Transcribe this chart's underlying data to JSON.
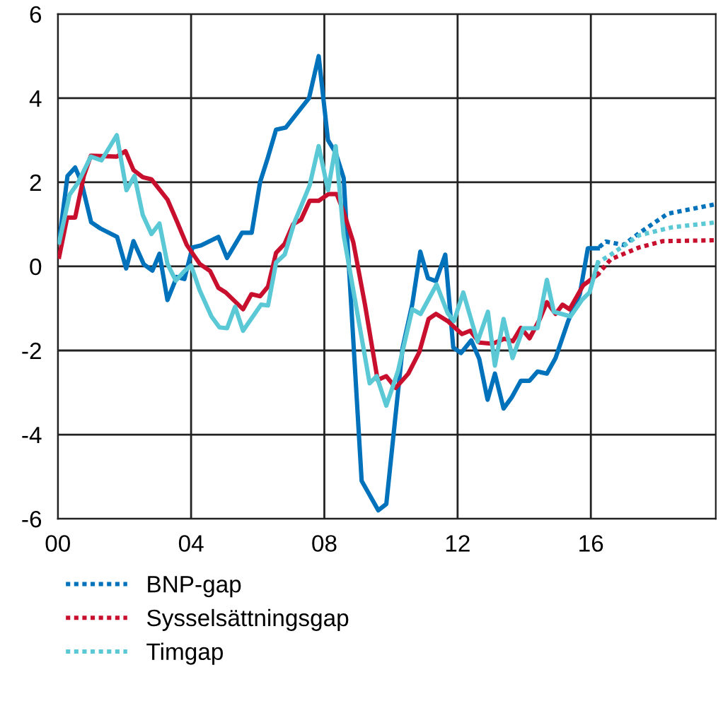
{
  "chart_data": {
    "type": "line",
    "xlim": [
      0,
      19.75
    ],
    "ylim": [
      -6,
      6
    ],
    "xticks": [
      {
        "value": 0,
        "label": "00"
      },
      {
        "value": 4,
        "label": "04"
      },
      {
        "value": 8,
        "label": "08"
      },
      {
        "value": 12,
        "label": "12"
      },
      {
        "value": 16,
        "label": "16"
      }
    ],
    "yticks": [
      -6,
      -4,
      -2,
      0,
      2,
      4,
      6
    ],
    "grid": true,
    "legend": "bottom left",
    "series": [
      {
        "color": "#0072bc",
        "line_style": "solid",
        "x": [
          0.04,
          0.29,
          0.52,
          0.71,
          1.0,
          1.28,
          1.78,
          2.05,
          2.27,
          2.58,
          2.84,
          3.05,
          3.29,
          3.57,
          3.8,
          4.04,
          4.3,
          4.82,
          5.08,
          5.53,
          5.82,
          6.07,
          6.31,
          6.55,
          6.84,
          7.09,
          7.54,
          7.83,
          8.11,
          8.34,
          8.58,
          9.12,
          9.62,
          9.86,
          10.35,
          10.64,
          10.88,
          11.11,
          11.35,
          11.63,
          11.87,
          12.1,
          12.41,
          12.65,
          12.9,
          13.12,
          13.38,
          13.62,
          13.9,
          14.16,
          14.4,
          14.68,
          14.94,
          15.32,
          15.67,
          15.91,
          16.21
        ],
        "values": [
          0.6,
          2.15,
          2.35,
          2.0,
          1.05,
          0.9,
          0.7,
          -0.05,
          0.6,
          0.05,
          -0.1,
          0.3,
          -0.8,
          -0.25,
          -0.3,
          0.45,
          0.5,
          0.7,
          0.2,
          0.8,
          0.8,
          2.0,
          2.6,
          3.25,
          3.3,
          3.55,
          4.0,
          5.0,
          3.0,
          2.7,
          2.1,
          -5.1,
          -5.8,
          -5.65,
          -1.93,
          -0.9,
          0.35,
          -0.28,
          -0.35,
          0.28,
          -1.93,
          -2.06,
          -1.76,
          -2.2,
          -3.17,
          -2.55,
          -3.38,
          -3.12,
          -2.72,
          -2.72,
          -2.5,
          -2.55,
          -2.18,
          -1.3,
          -0.66,
          0.43,
          0.43
        ]
      },
      {
        "color": "#c8102e",
        "line_style": "solid",
        "x": [
          0.04,
          0.28,
          0.52,
          0.78,
          0.99,
          1.77,
          2.03,
          2.27,
          2.55,
          2.81,
          3.29,
          3.59,
          3.87,
          4.26,
          4.57,
          4.82,
          5.04,
          5.56,
          5.81,
          6.07,
          6.31,
          6.55,
          6.81,
          7.06,
          7.3,
          7.56,
          7.83,
          8.13,
          8.37,
          8.58,
          8.87,
          9.22,
          9.6,
          9.86,
          10.14,
          10.52,
          10.85,
          11.13,
          11.35,
          11.7,
          12.13,
          12.38,
          12.65,
          13.05,
          13.4,
          13.66,
          13.9,
          14.16,
          14.47,
          14.68,
          14.94,
          15.15,
          15.36,
          15.77,
          16.21
        ],
        "values": [
          0.23,
          1.16,
          1.16,
          2.15,
          2.63,
          2.61,
          2.74,
          2.29,
          2.12,
          2.07,
          1.59,
          1.04,
          0.51,
          0.06,
          -0.11,
          -0.51,
          -0.62,
          -1.02,
          -0.66,
          -0.71,
          -0.48,
          0.32,
          0.54,
          1.0,
          1.11,
          1.56,
          1.56,
          1.72,
          1.72,
          1.3,
          0.57,
          -0.91,
          -2.7,
          -2.61,
          -2.89,
          -2.55,
          -2.04,
          -1.25,
          -1.13,
          -1.3,
          -1.61,
          -1.53,
          -1.81,
          -1.84,
          -1.72,
          -1.78,
          -1.46,
          -1.71,
          -1.25,
          -0.85,
          -1.13,
          -0.91,
          -1.02,
          -0.45,
          -0.19
        ]
      },
      {
        "color": "#5bc8d5",
        "line_style": "solid",
        "x": [
          0.04,
          0.35,
          0.6,
          0.99,
          1.31,
          1.77,
          2.06,
          2.3,
          2.55,
          2.81,
          3.05,
          3.29,
          3.54,
          3.8,
          4.0,
          4.26,
          4.61,
          4.85,
          5.08,
          5.32,
          5.56,
          6.1,
          6.31,
          6.55,
          6.81,
          7.09,
          7.56,
          7.83,
          8.11,
          8.34,
          8.58,
          9.36,
          9.57,
          9.86,
          10.21,
          10.64,
          10.89,
          11.37,
          11.7,
          11.89,
          12.17,
          12.6,
          12.91,
          13.12,
          13.38,
          13.65,
          13.97,
          14.4,
          14.68,
          14.89,
          15.39,
          15.74,
          15.96,
          16.21
        ],
        "values": [
          0.57,
          1.7,
          1.98,
          2.61,
          2.52,
          3.12,
          1.81,
          2.15,
          1.22,
          0.77,
          1.02,
          0.06,
          -0.34,
          -0.11,
          0.02,
          -0.57,
          -1.19,
          -1.45,
          -1.47,
          -0.96,
          -1.53,
          -0.91,
          -0.93,
          0.09,
          0.28,
          1.02,
          1.93,
          2.86,
          1.81,
          2.86,
          0.74,
          -2.78,
          -2.61,
          -3.31,
          -2.49,
          -1.02,
          -1.13,
          -0.43,
          -1.11,
          -1.3,
          -0.62,
          -1.79,
          -1.08,
          -2.36,
          -1.25,
          -2.18,
          -1.47,
          -1.47,
          -0.32,
          -1.08,
          -1.19,
          -0.79,
          -0.62,
          0.09
        ]
      },
      {
        "name": "BNP-gap",
        "color": "#0072bc",
        "line_style": "dotted",
        "x": [
          16.21,
          16.45,
          16.98,
          17.45,
          18.3,
          19.0,
          19.69
        ],
        "values": [
          0.43,
          0.59,
          0.51,
          0.79,
          1.25,
          1.36,
          1.47
        ]
      },
      {
        "name": "Sysselsättningsgap",
        "color": "#c8102e",
        "line_style": "dotted",
        "x": [
          16.21,
          16.6,
          17.45,
          18.16,
          19.69
        ],
        "values": [
          -0.19,
          0.17,
          0.45,
          0.6,
          0.62
        ]
      },
      {
        "name": "Timgap",
        "color": "#5bc8d5",
        "line_style": "dotted",
        "x": [
          16.21,
          16.6,
          17.45,
          18.44,
          19.69
        ],
        "values": [
          0.09,
          0.28,
          0.74,
          0.93,
          1.04
        ]
      }
    ]
  }
}
